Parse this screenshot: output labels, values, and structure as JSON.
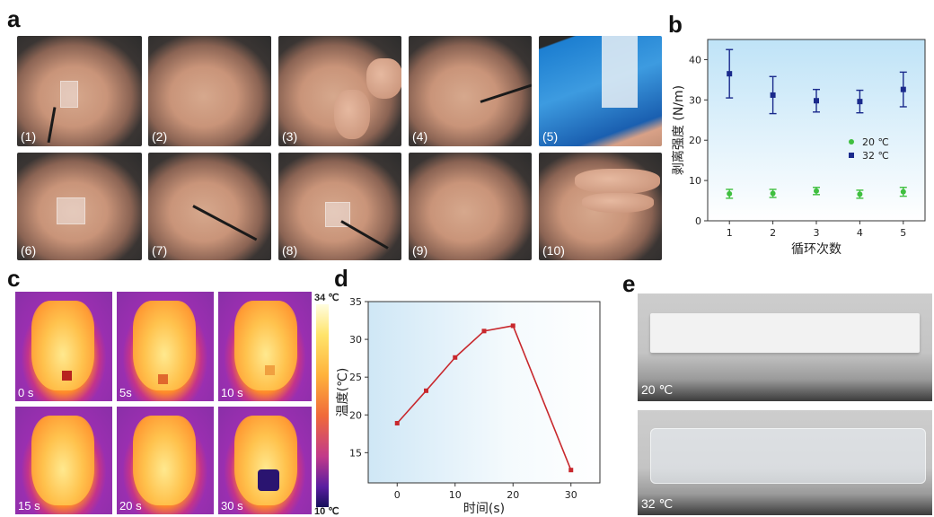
{
  "panels": {
    "a": {
      "letter": "a",
      "captions": [
        "(1)",
        "(2)",
        "(3)",
        "(4)",
        "(5)",
        "(6)",
        "(7)",
        "(8)",
        "(9)",
        "(10)"
      ]
    },
    "b": {
      "letter": "b"
    },
    "c": {
      "letter": "c",
      "captions": [
        "0 s",
        "5s",
        "10 s",
        "15 s",
        "20 s",
        "30 s"
      ],
      "colorbar": {
        "max_label": "34 ℃",
        "min_label": "10 ℃"
      }
    },
    "d": {
      "letter": "d"
    },
    "e": {
      "letter": "e",
      "captions": [
        "20 ℃",
        "32 ℃"
      ]
    }
  },
  "chart_data": [
    {
      "panel": "b",
      "type": "scatter",
      "xlabel": "循环次数",
      "ylabel": "剥离强度 (N/m)",
      "xlim": [
        0.5,
        5.5
      ],
      "ylim": [
        0,
        45
      ],
      "xticks": [
        1,
        2,
        3,
        4,
        5
      ],
      "yticks": [
        0,
        10,
        20,
        30,
        40
      ],
      "legend_position": "right",
      "series": [
        {
          "name": "20 ℃",
          "color": "#3fbf3f",
          "marker": "circle",
          "x": [
            1,
            2,
            3,
            4,
            5
          ],
          "y": [
            6.7,
            6.8,
            7.4,
            6.6,
            7.2
          ],
          "err": [
            1.1,
            1.0,
            0.9,
            1.0,
            1.1
          ]
        },
        {
          "name": "32 ℃",
          "color": "#1a2a8c",
          "marker": "square",
          "x": [
            1,
            2,
            3,
            4,
            5
          ],
          "y": [
            36.5,
            31.2,
            29.8,
            29.6,
            32.6
          ],
          "err": [
            6.0,
            4.6,
            2.8,
            2.8,
            4.3
          ]
        }
      ]
    },
    {
      "panel": "d",
      "type": "line",
      "xlabel": "时间(s)",
      "ylabel": "温度(℃)",
      "xlim": [
        -5,
        35
      ],
      "ylim": [
        11,
        35
      ],
      "xticks": [
        0,
        10,
        20,
        30
      ],
      "yticks": [
        15,
        20,
        25,
        30,
        35
      ],
      "series": [
        {
          "color": "#c8282d",
          "x": [
            0,
            5,
            10,
            15,
            20,
            30
          ],
          "y": [
            18.9,
            23.2,
            27.6,
            31.1,
            31.8,
            12.7
          ]
        }
      ]
    }
  ]
}
